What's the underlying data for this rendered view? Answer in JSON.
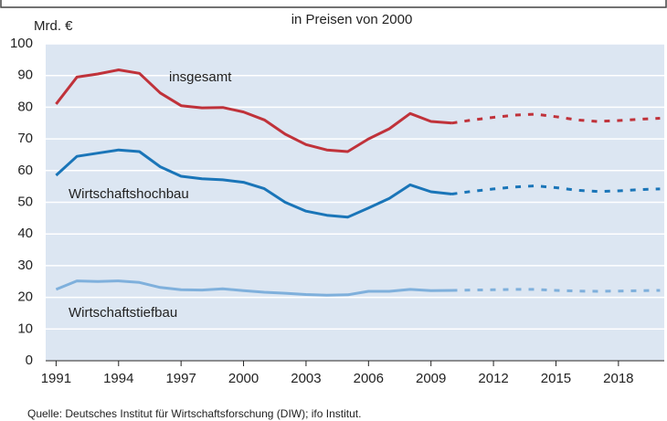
{
  "chart_data": {
    "type": "line",
    "title": "in Preisen von 2000",
    "y_label": "Mrd. €",
    "source": "Quelle: Deutsches Institut für Wirtschaftsforschung (DIW); ifo Institut.",
    "x": [
      1991,
      1992,
      1993,
      1994,
      1995,
      1996,
      1997,
      1998,
      1999,
      2000,
      2001,
      2002,
      2003,
      2004,
      2005,
      2006,
      2007,
      2008,
      2009,
      2010,
      2011,
      2012,
      2013,
      2014,
      2015,
      2016,
      2017,
      2018,
      2019,
      2020
    ],
    "xlim": [
      1990.5,
      2020.2
    ],
    "xticks": [
      1991,
      1994,
      1997,
      2000,
      2003,
      2006,
      2009,
      2012,
      2015,
      2018
    ],
    "ylim": [
      0,
      100
    ],
    "yticks": [
      0,
      10,
      20,
      30,
      40,
      50,
      60,
      70,
      80,
      90,
      100
    ],
    "grid": true,
    "series": [
      {
        "name": "insgesamt",
        "color": "#c0323a",
        "values": [
          81,
          89.5,
          90.5,
          91.8,
          90.7,
          84.5,
          80.5,
          79.8,
          79.9,
          78.5,
          76,
          71.5,
          68.2,
          66.5,
          66,
          70,
          73.2,
          78,
          75.5,
          75,
          null,
          null,
          null,
          null,
          null,
          null,
          null,
          null,
          null,
          null
        ],
        "forecast": [
          null,
          null,
          null,
          null,
          null,
          null,
          null,
          null,
          null,
          null,
          null,
          null,
          null,
          null,
          null,
          null,
          null,
          null,
          null,
          75,
          76,
          76.8,
          77.5,
          77.8,
          77,
          76,
          75.5,
          75.8,
          76.2,
          76.5
        ]
      },
      {
        "name": "Wirtschaftshochbau",
        "color": "#1a75b8",
        "values": [
          58.5,
          64.5,
          65.5,
          66.5,
          66,
          61.2,
          58.2,
          57.4,
          57.1,
          56.3,
          54.3,
          50,
          47.2,
          45.9,
          45.3,
          48.2,
          51.2,
          55.5,
          53.3,
          52.6,
          null,
          null,
          null,
          null,
          null,
          null,
          null,
          null,
          null,
          null
        ],
        "forecast": [
          null,
          null,
          null,
          null,
          null,
          null,
          null,
          null,
          null,
          null,
          null,
          null,
          null,
          null,
          null,
          null,
          null,
          null,
          null,
          52.6,
          53.5,
          54.2,
          54.8,
          55.2,
          54.6,
          53.8,
          53.4,
          53.6,
          54,
          54.2
        ]
      },
      {
        "name": "Wirtschaftstiefbau",
        "color": "#7fb0dc",
        "values": [
          22.5,
          25.2,
          25,
          25.2,
          24.7,
          23.1,
          22.4,
          22.3,
          22.7,
          22.1,
          21.6,
          21.3,
          20.9,
          20.7,
          20.8,
          21.9,
          21.9,
          22.5,
          22.1,
          22.2,
          null,
          null,
          null,
          null,
          null,
          null,
          null,
          null,
          null,
          null
        ],
        "forecast": [
          null,
          null,
          null,
          null,
          null,
          null,
          null,
          null,
          null,
          null,
          null,
          null,
          null,
          null,
          null,
          null,
          null,
          null,
          null,
          22.2,
          22.3,
          22.4,
          22.5,
          22.5,
          22.2,
          22,
          21.9,
          22,
          22.1,
          22.2
        ]
      }
    ]
  }
}
